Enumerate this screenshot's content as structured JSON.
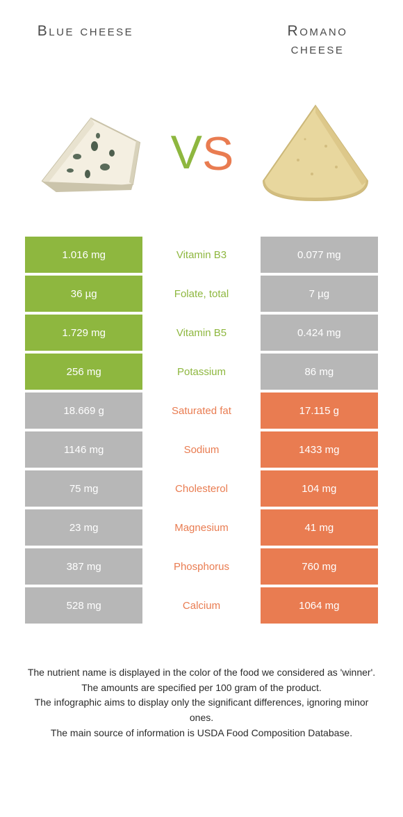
{
  "header": {
    "left_title": "Blue cheese",
    "right_title_line1": "Romano",
    "right_title_line2": "cheese"
  },
  "vs": {
    "v": "V",
    "s": "S"
  },
  "colors": {
    "green": "#8eb73f",
    "orange": "#e97c51",
    "neutral_left": "#b7b7b7",
    "neutral_right": "#b7b7b7",
    "vs_v": "#8eb73f",
    "vs_s": "#e97c51"
  },
  "images": {
    "left_alt": "blue-cheese-wedge",
    "right_alt": "romano-cheese-wedge"
  },
  "rows": [
    {
      "nutrient": "Vitamin B3",
      "left": "1.016 mg",
      "right": "0.077 mg",
      "winner": "left"
    },
    {
      "nutrient": "Folate, total",
      "left": "36 µg",
      "right": "7 µg",
      "winner": "left"
    },
    {
      "nutrient": "Vitamin B5",
      "left": "1.729 mg",
      "right": "0.424 mg",
      "winner": "left"
    },
    {
      "nutrient": "Potassium",
      "left": "256 mg",
      "right": "86 mg",
      "winner": "left"
    },
    {
      "nutrient": "Saturated fat",
      "left": "18.669 g",
      "right": "17.115 g",
      "winner": "right"
    },
    {
      "nutrient": "Sodium",
      "left": "1146 mg",
      "right": "1433 mg",
      "winner": "right"
    },
    {
      "nutrient": "Cholesterol",
      "left": "75 mg",
      "right": "104 mg",
      "winner": "right"
    },
    {
      "nutrient": "Magnesium",
      "left": "23 mg",
      "right": "41 mg",
      "winner": "right"
    },
    {
      "nutrient": "Phosphorus",
      "left": "387 mg",
      "right": "760 mg",
      "winner": "right"
    },
    {
      "nutrient": "Calcium",
      "left": "528 mg",
      "right": "1064 mg",
      "winner": "right"
    }
  ],
  "footnotes": [
    "The nutrient name is displayed in the color of the food we considered as 'winner'.",
    "The amounts are specified per 100 gram of the product.",
    "The infographic aims to display only the significant differences, ignoring minor ones.",
    "The main source of information is USDA Food Composition Database."
  ]
}
